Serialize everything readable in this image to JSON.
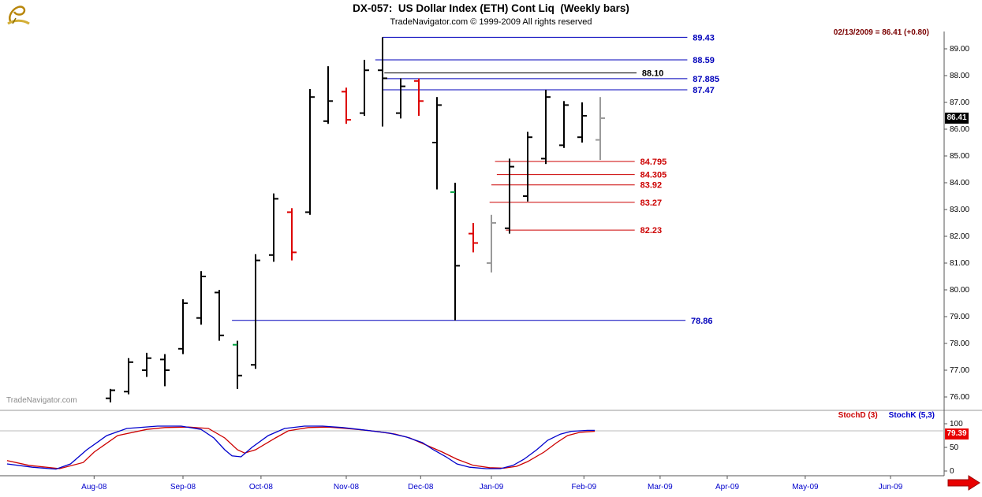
{
  "header": {
    "title": "DX-057:  US Dollar Index (ETH) Cont Liq  (Weekly bars)",
    "copyright": "TradeNavigator.com © 1999-2009 All rights reserved",
    "quote": "02/13/2009 = 86.41 (+0.80)"
  },
  "watermark": "TradeNavigator.com",
  "badges": {
    "last_price": "86.41",
    "stoch_value": "79.39"
  },
  "indicator_labels": {
    "stoch_d": "StochD (3)",
    "stoch_k": "StochK (5,3)"
  },
  "colors": {
    "bar_black": "#000000",
    "bar_red": "#dd0000",
    "bar_gray": "#9a9a9a",
    "tick_green": "#00a040",
    "line_blue": "#0000bb",
    "line_red": "#cc0000",
    "line_black": "#000000",
    "axis_text": "#000000",
    "month_text": "#0000cc",
    "axis_line": "#555555",
    "threshold_line": "#bbbbbb",
    "arrow_red": "#e80000"
  },
  "chart_data": {
    "type": "bar",
    "subtype": "ohlc-weekly-bars-with-stochastic",
    "title": "DX-057: US Dollar Index (ETH) Cont Liq (Weekly bars)",
    "last": {
      "date": "02/13/2009",
      "close": 86.41,
      "change": 0.8
    },
    "y_axis": {
      "min": 75.6,
      "max": 89.7,
      "tick_labels": [
        "89.00",
        "88.00",
        "87.00",
        "86.00",
        "85.00",
        "84.00",
        "83.00",
        "82.00",
        "81.00",
        "80.00",
        "79.00",
        "78.00",
        "77.00",
        "76.00"
      ]
    },
    "x_axis": {
      "unit": "week",
      "months": [
        {
          "label": "Aug-08",
          "week": -0.9
        },
        {
          "label": "Sep-08",
          "week": 4.0
        },
        {
          "label": "Oct-08",
          "week": 8.3
        },
        {
          "label": "Nov-08",
          "week": 13.0
        },
        {
          "label": "Dec-08",
          "week": 17.1
        },
        {
          "label": "Jan-09",
          "week": 21.0
        },
        {
          "label": "Feb-09",
          "week": 26.1
        },
        {
          "label": "Mar-09",
          "week": 30.3
        },
        {
          "label": "Apr-09",
          "week": 34.0
        },
        {
          "label": "May-09",
          "week": 38.3
        },
        {
          "label": "Jun-09",
          "week": 43.0
        }
      ]
    },
    "bars": [
      {
        "o": 75.95,
        "h": 76.3,
        "l": 75.8,
        "c": 76.25,
        "color": "black"
      },
      {
        "o": 76.2,
        "h": 77.45,
        "l": 76.1,
        "c": 77.3,
        "color": "black"
      },
      {
        "o": 77.0,
        "h": 77.65,
        "l": 76.75,
        "c": 77.45,
        "color": "black"
      },
      {
        "o": 77.4,
        "h": 77.6,
        "l": 76.4,
        "c": 77.0,
        "color": "black"
      },
      {
        "o": 77.8,
        "h": 79.65,
        "l": 77.6,
        "c": 79.5,
        "color": "black"
      },
      {
        "o": 78.95,
        "h": 80.7,
        "l": 78.7,
        "c": 80.5,
        "color": "black"
      },
      {
        "o": 79.9,
        "h": 80.0,
        "l": 78.1,
        "c": 78.3,
        "color": "black"
      },
      {
        "o": 77.95,
        "h": 78.1,
        "l": 76.3,
        "c": 76.8,
        "color": "black",
        "ot": "green"
      },
      {
        "o": 77.2,
        "h": 81.33,
        "l": 77.05,
        "c": 81.1,
        "color": "black"
      },
      {
        "o": 81.3,
        "h": 83.6,
        "l": 81.05,
        "c": 83.4,
        "color": "black"
      },
      {
        "o": 82.9,
        "h": 83.05,
        "l": 81.1,
        "c": 81.4,
        "color": "red"
      },
      {
        "o": 82.9,
        "h": 87.5,
        "l": 82.8,
        "c": 87.2,
        "color": "black"
      },
      {
        "o": 86.3,
        "h": 88.35,
        "l": 86.2,
        "c": 87.05,
        "color": "black"
      },
      {
        "o": 87.4,
        "h": 87.55,
        "l": 86.2,
        "c": 86.35,
        "color": "red"
      },
      {
        "o": 86.6,
        "h": 88.59,
        "l": 86.5,
        "c": 88.2,
        "color": "black"
      },
      {
        "o": 88.2,
        "h": 89.43,
        "l": 86.1,
        "c": 87.9,
        "color": "black"
      },
      {
        "o": 86.6,
        "h": 87.9,
        "l": 86.4,
        "c": 87.6,
        "color": "black"
      },
      {
        "o": 87.8,
        "h": 87.89,
        "l": 86.5,
        "c": 87.05,
        "color": "red"
      },
      {
        "o": 85.5,
        "h": 87.2,
        "l": 83.75,
        "c": 86.9,
        "color": "black"
      },
      {
        "o": 83.65,
        "h": 84.0,
        "l": 78.86,
        "c": 80.9,
        "color": "black",
        "ot": "green"
      },
      {
        "o": 82.1,
        "h": 82.5,
        "l": 81.4,
        "c": 81.75,
        "color": "red"
      },
      {
        "o": 81.0,
        "h": 82.8,
        "l": 80.65,
        "c": 82.5,
        "color": "gray"
      },
      {
        "o": 82.3,
        "h": 84.9,
        "l": 82.1,
        "c": 84.6,
        "color": "black"
      },
      {
        "o": 83.5,
        "h": 85.9,
        "l": 83.3,
        "c": 85.7,
        "color": "black"
      },
      {
        "o": 84.9,
        "h": 87.47,
        "l": 84.7,
        "c": 87.2,
        "color": "black"
      },
      {
        "o": 85.4,
        "h": 87.05,
        "l": 85.3,
        "c": 86.9,
        "color": "black"
      },
      {
        "o": 85.7,
        "h": 87.0,
        "l": 85.5,
        "c": 86.5,
        "color": "black"
      },
      {
        "o": 85.6,
        "h": 87.2,
        "l": 84.85,
        "c": 86.41,
        "color": "gray"
      }
    ],
    "ref_lines": [
      {
        "price": 89.43,
        "label": "89.43",
        "color": "blue",
        "from": 15.0,
        "to": 31.8,
        "label_at": 32.1
      },
      {
        "price": 88.59,
        "label": "88.59",
        "color": "blue",
        "from": 14.6,
        "to": 31.8,
        "label_at": 32.1
      },
      {
        "price": 88.1,
        "label": "88.10",
        "color": "black",
        "from": 15.1,
        "to": 29.0,
        "label_at": 29.3
      },
      {
        "price": 87.885,
        "label": "87.885",
        "color": "blue",
        "from": 15.0,
        "to": 31.8,
        "label_at": 32.1
      },
      {
        "price": 87.47,
        "label": "87.47",
        "color": "blue",
        "from": 15.0,
        "to": 31.8,
        "label_at": 32.1
      },
      {
        "price": 84.795,
        "label": "84.795",
        "color": "red",
        "from": 21.2,
        "to": 28.9,
        "label_at": 29.2
      },
      {
        "price": 84.305,
        "label": "84.305",
        "color": "red",
        "from": 21.3,
        "to": 28.9,
        "label_at": 29.2
      },
      {
        "price": 83.92,
        "label": "83.92",
        "color": "red",
        "from": 21.0,
        "to": 28.9,
        "label_at": 29.2
      },
      {
        "price": 83.27,
        "label": "83.27",
        "color": "red",
        "from": 20.9,
        "to": 28.9,
        "label_at": 29.2
      },
      {
        "price": 82.23,
        "label": "82.23",
        "color": "red",
        "from": 21.8,
        "to": 28.9,
        "label_at": 29.2
      },
      {
        "price": 78.86,
        "label": "78.86",
        "color": "blue",
        "from": 6.7,
        "to": 31.7,
        "label_at": 32.0
      }
    ],
    "stochastic": {
      "ticks": [
        "100",
        "50",
        "0"
      ],
      "threshold": 85,
      "last_value": 79.39,
      "series": [
        {
          "name": "StochD (3)",
          "color": "#cc0000",
          "points": [
            [
              -5.7,
              22
            ],
            [
              -4.5,
              12
            ],
            [
              -2.8,
              5
            ],
            [
              -1.5,
              18
            ],
            [
              -0.9,
              40
            ],
            [
              0.4,
              75
            ],
            [
              2,
              88
            ],
            [
              3,
              92
            ],
            [
              4.3,
              93
            ],
            [
              5.4,
              90
            ],
            [
              6.3,
              70
            ],
            [
              7,
              45
            ],
            [
              7.4,
              38
            ],
            [
              8,
              45
            ],
            [
              9.1,
              70
            ],
            [
              9.8,
              85
            ],
            [
              10.9,
              92
            ],
            [
              12,
              93
            ],
            [
              13,
              90
            ],
            [
              13.9,
              87
            ],
            [
              14.8,
              83
            ],
            [
              15.7,
              78
            ],
            [
              16.5,
              70
            ],
            [
              17.4,
              55
            ],
            [
              18.3,
              40
            ],
            [
              19.1,
              25
            ],
            [
              20,
              12
            ],
            [
              20.9,
              7
            ],
            [
              21.7,
              6
            ],
            [
              22.4,
              10
            ],
            [
              23,
              20
            ],
            [
              23.9,
              40
            ],
            [
              24.6,
              60
            ],
            [
              25.2,
              75
            ],
            [
              25.9,
              82
            ],
            [
              26.7,
              84
            ]
          ]
        },
        {
          "name": "StochK (5,3)",
          "color": "#0000cc",
          "points": [
            [
              -5.7,
              15
            ],
            [
              -4.3,
              8
            ],
            [
              -3,
              4
            ],
            [
              -2.2,
              15
            ],
            [
              -1.3,
              45
            ],
            [
              -0.2,
              75
            ],
            [
              0.9,
              90
            ],
            [
              2.6,
              95
            ],
            [
              3.9,
              95
            ],
            [
              5,
              88
            ],
            [
              5.7,
              70
            ],
            [
              6.3,
              45
            ],
            [
              6.7,
              32
            ],
            [
              7.2,
              30
            ],
            [
              7.8,
              50
            ],
            [
              8.7,
              75
            ],
            [
              9.6,
              90
            ],
            [
              10.7,
              95
            ],
            [
              11.7,
              95
            ],
            [
              12.8,
              92
            ],
            [
              13.7,
              88
            ],
            [
              14.6,
              84
            ],
            [
              15.4,
              80
            ],
            [
              16.3,
              72
            ],
            [
              17.2,
              60
            ],
            [
              17.8,
              45
            ],
            [
              18.5,
              30
            ],
            [
              19.1,
              15
            ],
            [
              19.8,
              8
            ],
            [
              20.7,
              5
            ],
            [
              21.5,
              5
            ],
            [
              22.2,
              12
            ],
            [
              22.8,
              25
            ],
            [
              23.5,
              45
            ],
            [
              24.1,
              65
            ],
            [
              24.8,
              78
            ],
            [
              25.4,
              84
            ],
            [
              26.3,
              86
            ],
            [
              26.7,
              86
            ]
          ]
        }
      ]
    }
  }
}
